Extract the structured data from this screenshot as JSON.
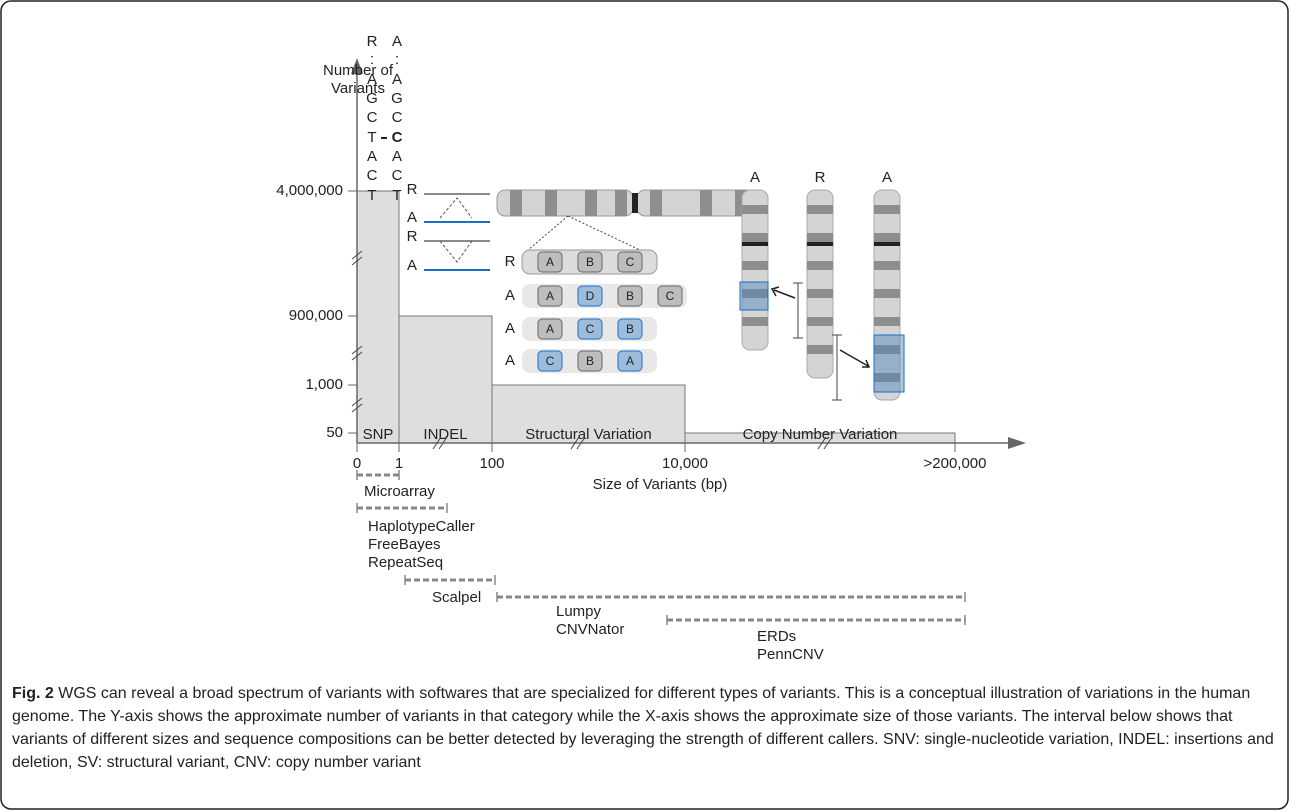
{
  "figure": {
    "y_axis_label": "Number of Variants",
    "x_axis_label": "Size of Variants (bp)",
    "yticks": [
      {
        "value": 50,
        "label": "50"
      },
      {
        "value": 1000,
        "label": "1,000"
      },
      {
        "value": 900000,
        "label": "900,000"
      },
      {
        "value": 4000000,
        "label": "4,000,000"
      }
    ],
    "xticks": [
      {
        "value": 0,
        "label": "0"
      },
      {
        "value": 1,
        "label": "1"
      },
      {
        "value": 100,
        "label": "100"
      },
      {
        "value": 10000,
        "label": "10,000"
      },
      {
        "value": 200000,
        "label": ">200,000"
      }
    ],
    "bars": [
      {
        "name": "SNP",
        "value": 4000000
      },
      {
        "name": "INDEL",
        "value": 900000
      },
      {
        "name": "Structural Variation",
        "value": 1000
      },
      {
        "name": "Copy Number Variation",
        "value": 50
      }
    ],
    "snp_example": {
      "reference": [
        "R",
        ":",
        "A",
        "G",
        "C",
        "T",
        "A",
        "C",
        "T"
      ],
      "alternate": [
        "A",
        ":",
        "A",
        "G",
        "C",
        "C",
        "A",
        "C",
        "T"
      ]
    },
    "indel_example": {
      "labels": [
        "R",
        "A",
        "R",
        "A"
      ]
    },
    "sv_example": {
      "rows": [
        {
          "label": "R",
          "segments": [
            "A",
            "B",
            "C"
          ]
        },
        {
          "label": "A",
          "segments": [
            "A",
            "D",
            "B",
            "C"
          ]
        },
        {
          "label": "A",
          "segments": [
            "A",
            "C",
            "B"
          ]
        },
        {
          "label": "A",
          "segments": [
            "C",
            "B",
            "A"
          ]
        }
      ]
    },
    "cnv_example": {
      "labels": [
        "A",
        "R",
        "A"
      ]
    },
    "tools": [
      [
        "Microarray"
      ],
      [
        "HaplotypeCaller",
        "FreeBayes",
        "RepeatSeq"
      ],
      [
        "Scalpel"
      ],
      [
        "Lumpy",
        "CNVNator"
      ],
      [
        "ERDs",
        "PennCNV"
      ]
    ],
    "caption": {
      "label": "Fig. 2",
      "text": "WGS can reveal a broad spectrum of variants with softwares that are specialized for different types of variants. This is a conceptual illustration of variations in the human genome. The Y-axis shows the approximate number of variants in that category while the X-axis shows the approximate size of those variants. The interval below shows that variants of different sizes and sequence compositions can be better detected by leveraging the strength of different callers. SNV: single-nucleotide variation, INDEL: insertions and deletion, SV: structural variant, CNV: copy number variant"
    }
  }
}
